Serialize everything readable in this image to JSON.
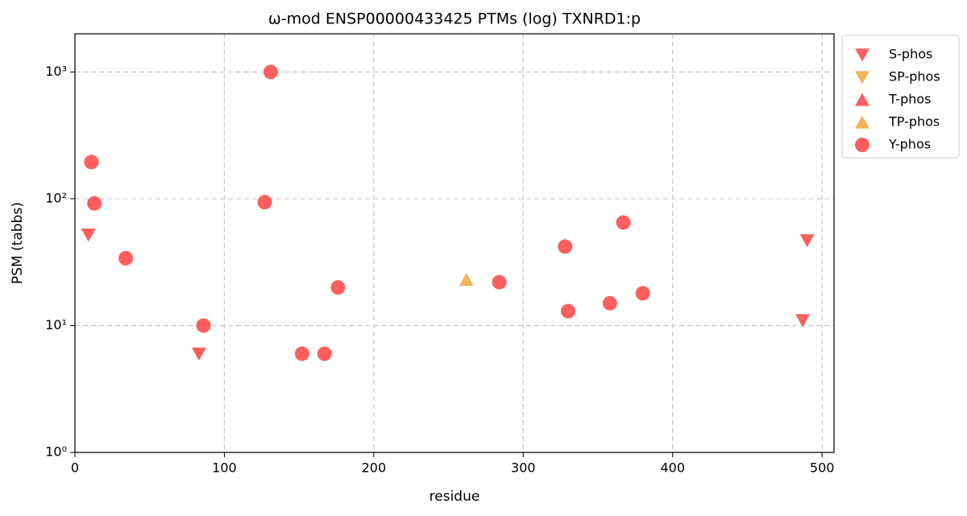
{
  "chart_data": {
    "type": "scatter",
    "title": "ω-mod ENSP00000433425 PTMs (log) TXNRD1:p",
    "xlabel": "residue",
    "ylabel": "PSM (tabbs)",
    "xlim": [
      0,
      508
    ],
    "ylim": [
      1,
      2000
    ],
    "yscale": "log",
    "xticks": [
      0,
      100,
      200,
      300,
      400,
      500
    ],
    "yticks": [
      {
        "value": 1,
        "label": "10⁰"
      },
      {
        "value": 10,
        "label": "10¹"
      },
      {
        "value": 100,
        "label": "10²"
      },
      {
        "value": 1000,
        "label": "10³"
      }
    ],
    "grid": true,
    "legend": "outside upper right",
    "series": [
      {
        "name": "S-phos",
        "color": "#ff5555",
        "marker": "v",
        "x": [
          9,
          83,
          487,
          490
        ],
        "values": [
          52,
          6,
          11,
          47
        ]
      },
      {
        "name": "SP-phos",
        "color": "#f0b050",
        "marker": "v",
        "x": [],
        "values": []
      },
      {
        "name": "T-phos",
        "color": "#ff5555",
        "marker": "^",
        "x": [],
        "values": []
      },
      {
        "name": "TP-phos",
        "color": "#f0b050",
        "marker": "^",
        "x": [
          262
        ],
        "values": [
          23
        ]
      },
      {
        "name": "Y-phos",
        "color": "#ff5555",
        "marker": "o",
        "x": [
          11,
          13,
          34,
          86,
          131,
          127,
          152,
          167,
          176,
          284,
          328,
          330,
          358,
          367,
          380
        ],
        "values": [
          195,
          92,
          34,
          10,
          1000,
          94,
          6,
          6,
          20,
          22,
          42,
          13,
          15,
          65,
          18
        ]
      }
    ]
  }
}
